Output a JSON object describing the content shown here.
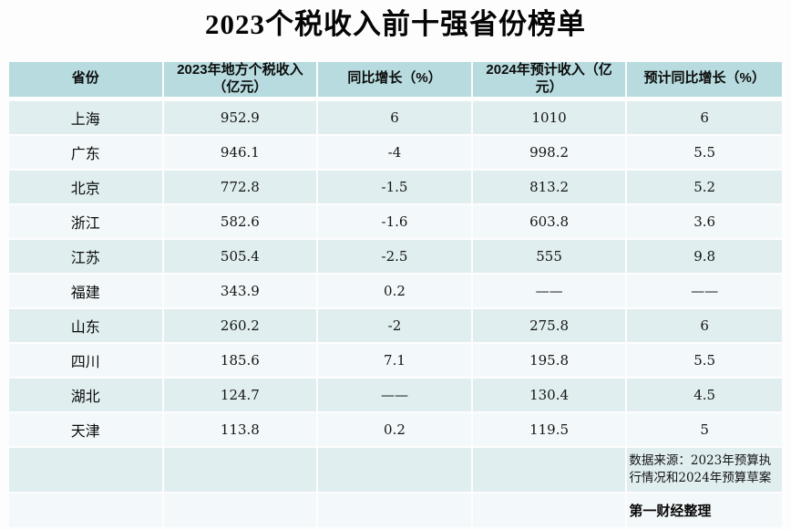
{
  "title": "2023个税收入前十强省份榜单",
  "table": {
    "columns": [
      "省份",
      "2023年地方个税收入（亿元）",
      "同比增长（%）",
      "2024年预计收入（亿元）",
      "预计同比增长（%）"
    ],
    "rows": [
      {
        "province": "上海",
        "income_2023": "952.9",
        "yoy_growth": "6",
        "income_2024": "1010",
        "expected_yoy": "6"
      },
      {
        "province": "广东",
        "income_2023": "946.1",
        "yoy_growth": "-4",
        "income_2024": "998.2",
        "expected_yoy": "5.5"
      },
      {
        "province": "北京",
        "income_2023": "772.8",
        "yoy_growth": "-1.5",
        "income_2024": "813.2",
        "expected_yoy": "5.2"
      },
      {
        "province": "浙江",
        "income_2023": "582.6",
        "yoy_growth": "-1.6",
        "income_2024": "603.8",
        "expected_yoy": "3.6"
      },
      {
        "province": "江苏",
        "income_2023": "505.4",
        "yoy_growth": "-2.5",
        "income_2024": "555",
        "expected_yoy": "9.8"
      },
      {
        "province": "福建",
        "income_2023": "343.9",
        "yoy_growth": "0.2",
        "income_2024": "——",
        "expected_yoy": "——"
      },
      {
        "province": "山东",
        "income_2023": "260.2",
        "yoy_growth": "-2",
        "income_2024": "275.8",
        "expected_yoy": "6"
      },
      {
        "province": "四川",
        "income_2023": "185.6",
        "yoy_growth": "7.1",
        "income_2024": "195.8",
        "expected_yoy": "5.5"
      },
      {
        "province": "湖北",
        "income_2023": "124.7",
        "yoy_growth": "——",
        "income_2024": "130.4",
        "expected_yoy": "4.5"
      },
      {
        "province": "天津",
        "income_2023": "113.8",
        "yoy_growth": "0.2",
        "income_2024": "119.5",
        "expected_yoy": "5"
      }
    ]
  },
  "footer": {
    "source_note": "数据来源：2023年预算执行情况和2024年预算草案",
    "credit": "第一财经整理"
  },
  "colors": {
    "header_bg": "#b7dbde",
    "row_alt_bg": "#e0eef0",
    "row_bg": "#f3f9fa",
    "page_bg": "#fdfdfd",
    "text": "#151515"
  }
}
